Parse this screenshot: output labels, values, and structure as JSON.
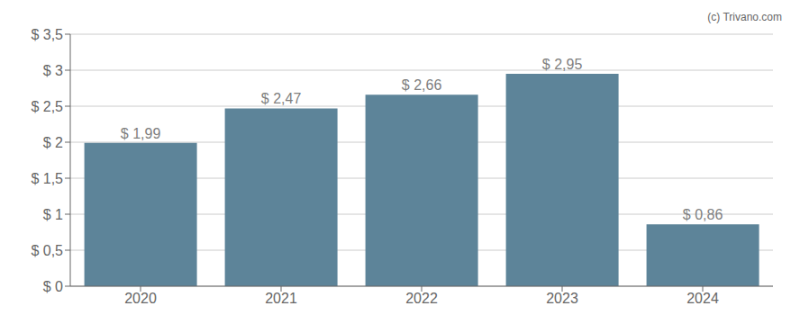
{
  "chart_data": {
    "type": "bar",
    "categories": [
      "2020",
      "2021",
      "2022",
      "2023",
      "2024"
    ],
    "values": [
      1.99,
      2.47,
      2.66,
      2.95,
      0.86
    ],
    "value_labels": [
      "$ 1,99",
      "$ 2,47",
      "$ 2,66",
      "$ 2,95",
      "$ 0,86"
    ],
    "data_labels": true,
    "color": "#5d8499",
    "ylim": [
      0,
      3.5
    ],
    "yticks": [
      {
        "value": 0,
        "label": "$ 0"
      },
      {
        "value": 0.5,
        "label": "$ 0,5"
      },
      {
        "value": 1.0,
        "label": "$ 1"
      },
      {
        "value": 1.5,
        "label": "$ 1,5"
      },
      {
        "value": 2.0,
        "label": "$ 2"
      },
      {
        "value": 2.5,
        "label": "$ 2,5"
      },
      {
        "value": 3.0,
        "label": "$ 3"
      },
      {
        "value": 3.5,
        "label": "$ 3,5"
      }
    ],
    "grid": true,
    "annotations": [
      "(c) Trivano.com"
    ]
  }
}
